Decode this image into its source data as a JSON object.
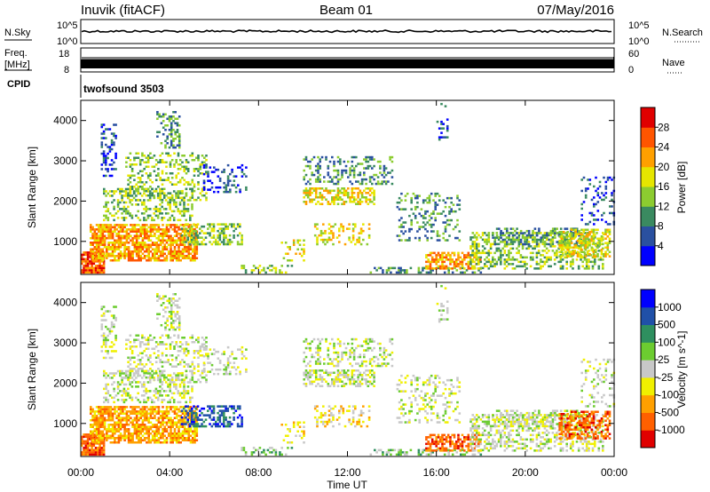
{
  "header": {
    "station": "Inuvik (fitACF)",
    "beam": "Beam 01",
    "date": "07/May/2016"
  },
  "top_panels": {
    "nsky_label": "N.Sky",
    "nsky_ticks": [
      "10^5",
      "10^0"
    ],
    "nsearch_label": "N.Search",
    "nsearch_ticks": [
      "10^5",
      "10^0"
    ],
    "freq_label": "Freq.",
    "freq_unit": "[MHz]",
    "freq_ticks": [
      "18",
      "8"
    ],
    "nave_label": "Nave",
    "nave_ticks": [
      "60",
      "0"
    ],
    "cpid_label": "CPID",
    "cpid_value": "twofsound 3503"
  },
  "colors": {
    "power": [
      "#0000ff",
      "#2a50a0",
      "#3a8a60",
      "#8ccc30",
      "#e6e600",
      "#ffa000",
      "#ff5500",
      "#e00000"
    ],
    "velocity": [
      "#e00000",
      "#ff6000",
      "#ffa000",
      "#f0f000",
      "#c8c8c8",
      "#6ccc30",
      "#2e8f5f",
      "#2050a8",
      "#0000ff"
    ]
  },
  "chart_data": [
    {
      "type": "heatmap",
      "name": "power",
      "xlabel": "",
      "ylabel": "Slant Range [km]",
      "yticks": [
        "1000",
        "2000",
        "3000",
        "4000"
      ],
      "ylim": [
        180,
        4500
      ],
      "colorbar": {
        "label": "Power [dB]",
        "ticks": [
          "4",
          "8",
          "12",
          "16",
          "20",
          "24",
          "28"
        ],
        "range": [
          0,
          32
        ]
      },
      "grid": false
    },
    {
      "type": "heatmap",
      "name": "velocity",
      "xlabel": "Time UT",
      "ylabel": "Slant Range [km]",
      "xticks": [
        "00:00",
        "04:00",
        "08:00",
        "12:00",
        "16:00",
        "20:00",
        "00:00"
      ],
      "yticks": [
        "1000",
        "2000",
        "3000",
        "4000"
      ],
      "ylim": [
        180,
        4500
      ],
      "xlim": [
        0,
        24
      ],
      "colorbar": {
        "label": "Velocity [m s^-1]",
        "ticks": [
          "1000",
          "500",
          "100",
          "25",
          "-25",
          "-100",
          "-500",
          "-1000"
        ]
      },
      "grid": false
    }
  ]
}
